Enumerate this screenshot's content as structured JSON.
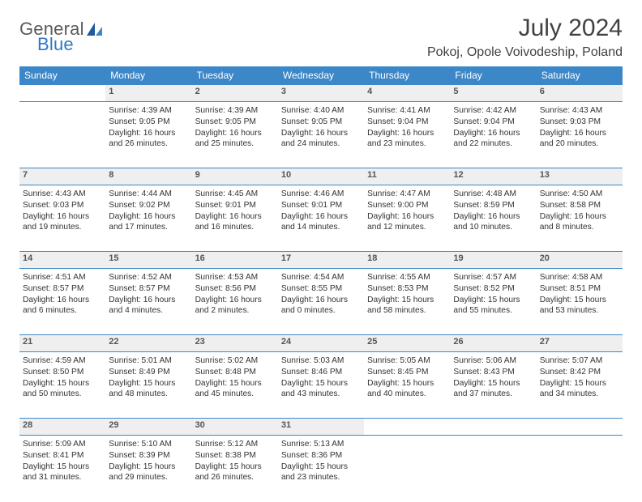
{
  "logo": {
    "word1": "General",
    "word2": "Blue"
  },
  "title": {
    "month": "July 2024",
    "location": "Pokoj, Opole Voivodeship, Poland"
  },
  "weekdays": [
    "Sunday",
    "Monday",
    "Tuesday",
    "Wednesday",
    "Thursday",
    "Friday",
    "Saturday"
  ],
  "colors": {
    "header_bg": "#3c87c7",
    "header_text": "#ffffff",
    "daynum_bg": "#efefef",
    "rule": "#3c87c7",
    "logo_gray": "#5a5a5a",
    "logo_blue": "#2d78c6"
  },
  "start_weekday": 1,
  "days": [
    {
      "n": 1,
      "sunrise": "4:39 AM",
      "sunset": "9:05 PM",
      "daylight": "16 hours and 26 minutes."
    },
    {
      "n": 2,
      "sunrise": "4:39 AM",
      "sunset": "9:05 PM",
      "daylight": "16 hours and 25 minutes."
    },
    {
      "n": 3,
      "sunrise": "4:40 AM",
      "sunset": "9:05 PM",
      "daylight": "16 hours and 24 minutes."
    },
    {
      "n": 4,
      "sunrise": "4:41 AM",
      "sunset": "9:04 PM",
      "daylight": "16 hours and 23 minutes."
    },
    {
      "n": 5,
      "sunrise": "4:42 AM",
      "sunset": "9:04 PM",
      "daylight": "16 hours and 22 minutes."
    },
    {
      "n": 6,
      "sunrise": "4:43 AM",
      "sunset": "9:03 PM",
      "daylight": "16 hours and 20 minutes."
    },
    {
      "n": 7,
      "sunrise": "4:43 AM",
      "sunset": "9:03 PM",
      "daylight": "16 hours and 19 minutes."
    },
    {
      "n": 8,
      "sunrise": "4:44 AM",
      "sunset": "9:02 PM",
      "daylight": "16 hours and 17 minutes."
    },
    {
      "n": 9,
      "sunrise": "4:45 AM",
      "sunset": "9:01 PM",
      "daylight": "16 hours and 16 minutes."
    },
    {
      "n": 10,
      "sunrise": "4:46 AM",
      "sunset": "9:01 PM",
      "daylight": "16 hours and 14 minutes."
    },
    {
      "n": 11,
      "sunrise": "4:47 AM",
      "sunset": "9:00 PM",
      "daylight": "16 hours and 12 minutes."
    },
    {
      "n": 12,
      "sunrise": "4:48 AM",
      "sunset": "8:59 PM",
      "daylight": "16 hours and 10 minutes."
    },
    {
      "n": 13,
      "sunrise": "4:50 AM",
      "sunset": "8:58 PM",
      "daylight": "16 hours and 8 minutes."
    },
    {
      "n": 14,
      "sunrise": "4:51 AM",
      "sunset": "8:57 PM",
      "daylight": "16 hours and 6 minutes."
    },
    {
      "n": 15,
      "sunrise": "4:52 AM",
      "sunset": "8:57 PM",
      "daylight": "16 hours and 4 minutes."
    },
    {
      "n": 16,
      "sunrise": "4:53 AM",
      "sunset": "8:56 PM",
      "daylight": "16 hours and 2 minutes."
    },
    {
      "n": 17,
      "sunrise": "4:54 AM",
      "sunset": "8:55 PM",
      "daylight": "16 hours and 0 minutes."
    },
    {
      "n": 18,
      "sunrise": "4:55 AM",
      "sunset": "8:53 PM",
      "daylight": "15 hours and 58 minutes."
    },
    {
      "n": 19,
      "sunrise": "4:57 AM",
      "sunset": "8:52 PM",
      "daylight": "15 hours and 55 minutes."
    },
    {
      "n": 20,
      "sunrise": "4:58 AM",
      "sunset": "8:51 PM",
      "daylight": "15 hours and 53 minutes."
    },
    {
      "n": 21,
      "sunrise": "4:59 AM",
      "sunset": "8:50 PM",
      "daylight": "15 hours and 50 minutes."
    },
    {
      "n": 22,
      "sunrise": "5:01 AM",
      "sunset": "8:49 PM",
      "daylight": "15 hours and 48 minutes."
    },
    {
      "n": 23,
      "sunrise": "5:02 AM",
      "sunset": "8:48 PM",
      "daylight": "15 hours and 45 minutes."
    },
    {
      "n": 24,
      "sunrise": "5:03 AM",
      "sunset": "8:46 PM",
      "daylight": "15 hours and 43 minutes."
    },
    {
      "n": 25,
      "sunrise": "5:05 AM",
      "sunset": "8:45 PM",
      "daylight": "15 hours and 40 minutes."
    },
    {
      "n": 26,
      "sunrise": "5:06 AM",
      "sunset": "8:43 PM",
      "daylight": "15 hours and 37 minutes."
    },
    {
      "n": 27,
      "sunrise": "5:07 AM",
      "sunset": "8:42 PM",
      "daylight": "15 hours and 34 minutes."
    },
    {
      "n": 28,
      "sunrise": "5:09 AM",
      "sunset": "8:41 PM",
      "daylight": "15 hours and 31 minutes."
    },
    {
      "n": 29,
      "sunrise": "5:10 AM",
      "sunset": "8:39 PM",
      "daylight": "15 hours and 29 minutes."
    },
    {
      "n": 30,
      "sunrise": "5:12 AM",
      "sunset": "8:38 PM",
      "daylight": "15 hours and 26 minutes."
    },
    {
      "n": 31,
      "sunrise": "5:13 AM",
      "sunset": "8:36 PM",
      "daylight": "15 hours and 23 minutes."
    }
  ],
  "labels": {
    "sunrise": "Sunrise:",
    "sunset": "Sunset:",
    "daylight": "Daylight:"
  }
}
